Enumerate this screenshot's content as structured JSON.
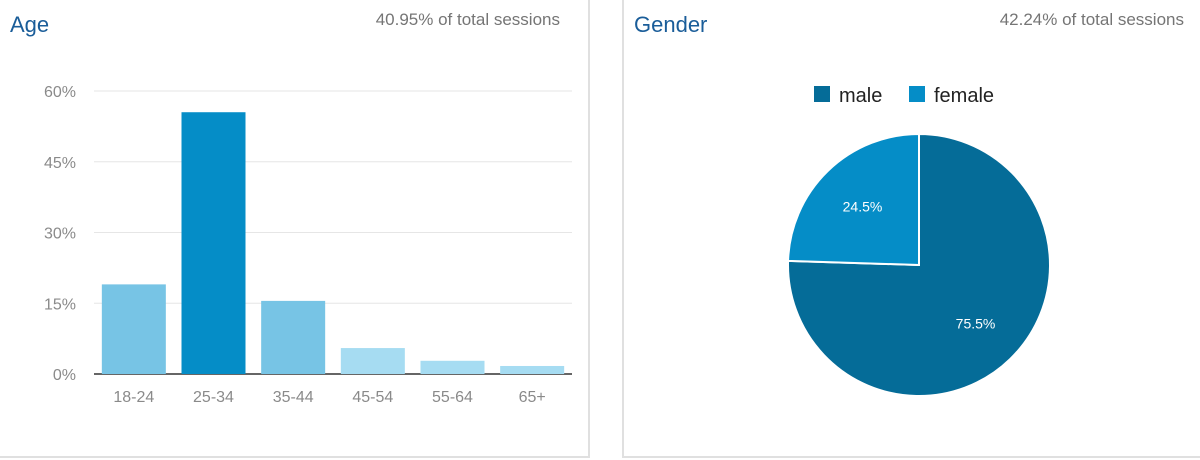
{
  "age_panel": {
    "title": "Age",
    "subtitle": "40.95% of total sessions"
  },
  "gender_panel": {
    "title": "Gender",
    "subtitle": "42.24% of total sessions"
  },
  "chart_data": [
    {
      "type": "bar",
      "title": "Age",
      "categories": [
        "18-24",
        "25-34",
        "35-44",
        "45-54",
        "55-64",
        "65+"
      ],
      "values": [
        19,
        55.5,
        15.5,
        5.5,
        2.8,
        1.7
      ],
      "colors": [
        "#77c4e5",
        "#058dc7",
        "#77c4e5",
        "#a6dcf2",
        "#a6dcf2",
        "#a6dcf2"
      ],
      "yticks": [
        "60%",
        "45%",
        "30%",
        "15%",
        "0%"
      ],
      "ylim": [
        0,
        60
      ],
      "grid": true
    },
    {
      "type": "pie",
      "title": "Gender",
      "slices": [
        {
          "label": "male",
          "value": 75.5,
          "display": "75.5%",
          "color": "#056c98"
        },
        {
          "label": "female",
          "value": 24.5,
          "display": "24.5%",
          "color": "#058dc7"
        }
      ],
      "legend_position": "top"
    }
  ]
}
